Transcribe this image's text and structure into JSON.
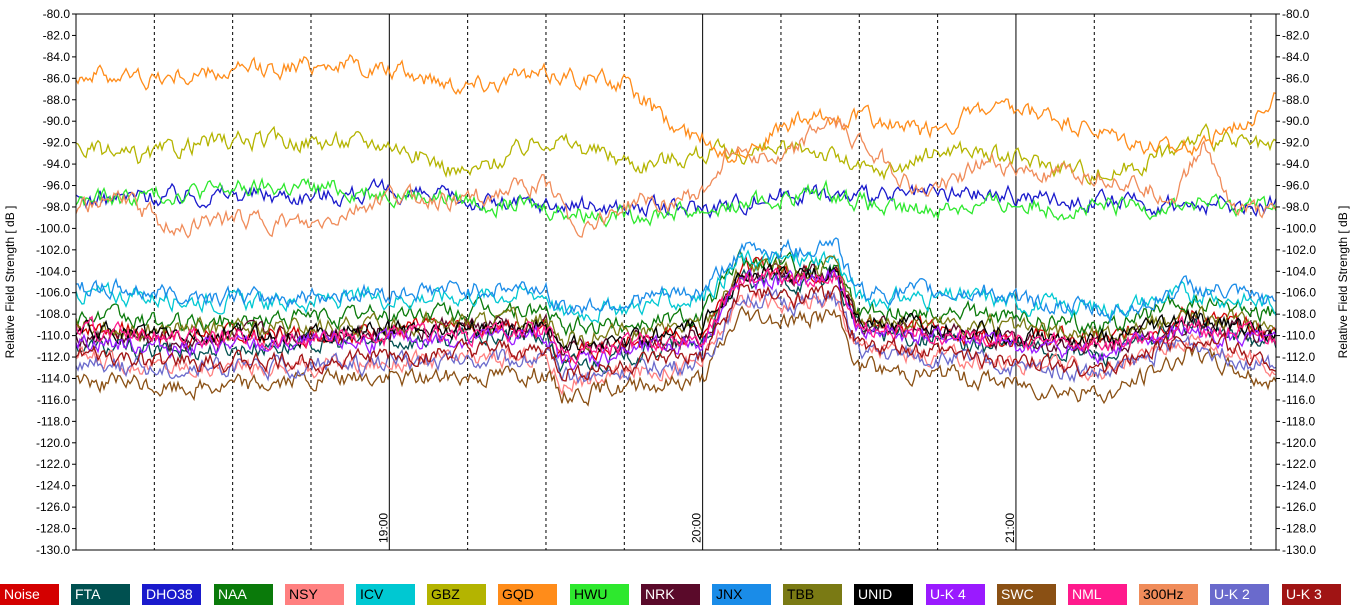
{
  "chart_data": {
    "type": "line",
    "title": "",
    "ylabel_left": "Relative Field Strength [ dB ]",
    "ylabel_right": "Relative Field Strength [ dB ]",
    "ylim": [
      -130,
      -80
    ],
    "yticks": [
      "-80.0",
      "-82.0",
      "-84.0",
      "-86.0",
      "-88.0",
      "-90.0",
      "-92.0",
      "-94.0",
      "-96.0",
      "-98.0",
      "-100.0",
      "-102.0",
      "-104.0",
      "-106.0",
      "-108.0",
      "-110.0",
      "-112.0",
      "-114.0",
      "-116.0",
      "-118.0",
      "-120.0",
      "-122.0",
      "-124.0",
      "-126.0",
      "-128.0",
      "-130.0"
    ],
    "xlim_minutes": [
      18.0,
      21.83
    ],
    "x_labels": [
      {
        "time": "19:00",
        "hour": 19.0
      },
      {
        "time": "20:00",
        "hour": 20.0
      },
      {
        "time": "21:00",
        "hour": 21.0
      }
    ],
    "grid": {
      "solid_hours": [
        19.0,
        20.0,
        21.0
      ],
      "dashed_hours": [
        18.25,
        18.5,
        18.75,
        19.25,
        19.5,
        19.75,
        20.25,
        20.5,
        20.75,
        21.25,
        21.75
      ]
    },
    "series": [
      {
        "name": "Noise",
        "color": "#d40000",
        "text_color": "#ffffff",
        "x": [
          18.0,
          18.3,
          18.6,
          19.0,
          19.5,
          19.55,
          20.0,
          20.12,
          20.3,
          20.42,
          20.5,
          20.9,
          21.0,
          21.3,
          21.55,
          21.83
        ],
        "y": [
          -109,
          -110,
          -110,
          -109.5,
          -109,
          -112,
          -109.5,
          -103.5,
          -104,
          -104,
          -108.5,
          -110,
          -110,
          -110.5,
          -108,
          -110
        ]
      },
      {
        "name": "FTA",
        "color": "#005050",
        "text_color": "#ffffff",
        "x": [
          18.0,
          18.3,
          18.6,
          19.0,
          19.5,
          19.55,
          20.0,
          20.12,
          20.3,
          20.42,
          20.5,
          20.9,
          21.0,
          21.3,
          21.55,
          21.83
        ],
        "y": [
          -111,
          -111.5,
          -111,
          -110.5,
          -110,
          -113,
          -110.5,
          -105,
          -105,
          -104.5,
          -109.5,
          -111,
          -111,
          -112,
          -109,
          -111
        ]
      },
      {
        "name": "DHO38",
        "color": "#1a1acc",
        "text_color": "#ffffff",
        "x": [
          18.0,
          18.2,
          18.5,
          18.8,
          19.0,
          19.3,
          19.6,
          19.9,
          20.1,
          20.3,
          20.5,
          20.8,
          21.0,
          21.3,
          21.6,
          21.83
        ],
        "y": [
          -97.5,
          -97,
          -96.8,
          -96.9,
          -96.6,
          -97.6,
          -97.9,
          -98.2,
          -97.7,
          -96.5,
          -97.2,
          -96.8,
          -96.9,
          -97.6,
          -98.0,
          -97.8
        ]
      },
      {
        "name": "NAA",
        "color": "#0a7a0a",
        "text_color": "#ffffff",
        "x": [
          18.0,
          18.3,
          18.6,
          19.0,
          19.5,
          19.55,
          20.0,
          20.12,
          20.3,
          20.42,
          20.5,
          20.9,
          21.0,
          21.3,
          21.55,
          21.83
        ],
        "y": [
          -108,
          -109,
          -108.5,
          -108,
          -107.5,
          -109.5,
          -108,
          -103,
          -103.5,
          -103,
          -107.5,
          -108,
          -108.5,
          -109,
          -107,
          -108
        ]
      },
      {
        "name": "NSY",
        "color": "#ff8080",
        "text_color": "#000000",
        "x": [
          18.0,
          18.3,
          18.6,
          19.0,
          19.5,
          19.55,
          20.0,
          20.12,
          20.3,
          20.42,
          20.5,
          20.9,
          21.0,
          21.3,
          21.55,
          21.83
        ],
        "y": [
          -112,
          -113,
          -113,
          -112.5,
          -112,
          -114.5,
          -112.5,
          -106.5,
          -107,
          -106.5,
          -111,
          -112.5,
          -112.5,
          -113.5,
          -110,
          -113
        ]
      },
      {
        "name": "ICV",
        "color": "#00c8d2",
        "text_color": "#000000",
        "x": [
          18.0,
          18.3,
          18.6,
          19.0,
          19.5,
          19.55,
          20.0,
          20.12,
          20.3,
          20.42,
          20.5,
          20.9,
          21.0,
          21.3,
          21.55,
          21.83
        ],
        "y": [
          -106,
          -106.5,
          -107,
          -106.5,
          -106,
          -108,
          -106.5,
          -103,
          -103,
          -102.5,
          -106.5,
          -106.5,
          -107,
          -107.5,
          -106,
          -107
        ]
      },
      {
        "name": "GBZ",
        "color": "#b4b400",
        "text_color": "#000000",
        "x": [
          18.0,
          18.2,
          18.4,
          18.7,
          19.0,
          19.25,
          19.5,
          19.8,
          20.0,
          20.15,
          20.35,
          20.55,
          20.8,
          21.0,
          21.3,
          21.6,
          21.83
        ],
        "y": [
          -92.5,
          -93.5,
          -92,
          -91.8,
          -92,
          -95,
          -91.5,
          -94,
          -93,
          -93,
          -92.5,
          -95,
          -92.5,
          -93.5,
          -95,
          -91.5,
          -92.8
        ]
      },
      {
        "name": "GQD",
        "color": "#ff8c1a",
        "text_color": "#000000",
        "x": [
          18.0,
          18.25,
          18.5,
          18.8,
          19.0,
          19.25,
          19.55,
          19.75,
          19.9,
          20.1,
          20.3,
          20.5,
          20.7,
          20.9,
          21.1,
          21.3,
          21.5,
          21.7,
          21.83
        ],
        "y": [
          -85.5,
          -86,
          -85.5,
          -84.5,
          -85.3,
          -86.5,
          -85.5,
          -86.5,
          -90.5,
          -93,
          -90,
          -89.5,
          -91,
          -89,
          -89.5,
          -91.5,
          -93,
          -90.5,
          -87.5
        ]
      },
      {
        "name": "HWU",
        "color": "#2ee82e",
        "text_color": "#000000",
        "x": [
          18.0,
          18.2,
          18.4,
          18.7,
          19.0,
          19.2,
          19.4,
          19.6,
          19.8,
          20.0,
          20.2,
          20.4,
          20.6,
          20.8,
          21.0,
          21.2,
          21.4,
          21.6,
          21.83
        ],
        "y": [
          -97.5,
          -97,
          -96.5,
          -96.2,
          -96.6,
          -97.2,
          -97.8,
          -98.5,
          -98.6,
          -98.3,
          -97.5,
          -96.5,
          -98.5,
          -98,
          -97.7,
          -98.3,
          -98.0,
          -97.8,
          -97.9
        ]
      },
      {
        "name": "NRK",
        "color": "#5a0a2a",
        "text_color": "#ffffff",
        "x": [
          18.0,
          18.3,
          18.6,
          19.0,
          19.5,
          19.55,
          20.0,
          20.12,
          20.3,
          20.42,
          20.5,
          20.9,
          21.0,
          21.3,
          21.55,
          21.83
        ],
        "y": [
          -110,
          -110.5,
          -110,
          -109.5,
          -109,
          -111.5,
          -110,
          -104.5,
          -104.5,
          -104,
          -109,
          -110,
          -110.5,
          -111,
          -109,
          -110
        ]
      },
      {
        "name": "JNX",
        "color": "#1a8ce8",
        "text_color": "#000000",
        "x": [
          18.0,
          18.3,
          18.6,
          19.0,
          19.5,
          19.55,
          20.0,
          20.12,
          20.3,
          20.42,
          20.5,
          20.9,
          21.0,
          21.3,
          21.55,
          21.83
        ],
        "y": [
          -105.5,
          -106,
          -106.5,
          -106,
          -105.5,
          -107.5,
          -106,
          -102,
          -102,
          -101,
          -106,
          -106,
          -106.5,
          -108,
          -105.5,
          -107
        ]
      },
      {
        "name": "TBB",
        "color": "#7a7a14",
        "text_color": "#000000",
        "x": [
          18.0,
          18.3,
          18.6,
          19.0,
          19.5,
          19.55,
          20.0,
          20.12,
          20.3,
          20.42,
          20.5,
          20.9,
          21.0,
          21.3,
          21.55,
          21.83
        ],
        "y": [
          -109,
          -109.5,
          -109.5,
          -109,
          -108.5,
          -110.5,
          -109,
          -104,
          -104,
          -103.5,
          -108.5,
          -109,
          -109.5,
          -110,
          -108,
          -109
        ]
      },
      {
        "name": "UNID",
        "color": "#000000",
        "text_color": "#ffffff",
        "x": [
          18.0,
          18.3,
          18.6,
          19.0,
          19.5,
          19.55,
          20.0,
          20.12,
          20.3,
          20.42,
          20.5,
          20.9,
          21.0,
          21.3,
          21.55,
          21.83
        ],
        "y": [
          -109.5,
          -110,
          -110,
          -109.5,
          -109,
          -111,
          -109.5,
          -104,
          -104.5,
          -104,
          -109,
          -109.5,
          -110,
          -110.5,
          -108.5,
          -109.5
        ]
      },
      {
        "name": "U-K 4",
        "color": "#9a1aff",
        "text_color": "#ffffff",
        "x": [
          18.0,
          18.3,
          18.6,
          19.0,
          19.5,
          19.55,
          20.0,
          20.12,
          20.3,
          20.42,
          20.5,
          20.9,
          21.0,
          21.3,
          21.55,
          21.83
        ],
        "y": [
          -110.5,
          -111,
          -111,
          -110.5,
          -110,
          -112.5,
          -110.5,
          -105,
          -105,
          -104.5,
          -109.5,
          -110.5,
          -111,
          -111.5,
          -109.5,
          -111
        ]
      },
      {
        "name": "SWC",
        "color": "#8a5014",
        "text_color": "#ffffff",
        "x": [
          18.0,
          18.3,
          18.6,
          19.0,
          19.5,
          19.55,
          20.0,
          20.12,
          20.3,
          20.42,
          20.5,
          20.9,
          21.0,
          21.3,
          21.55,
          21.83
        ],
        "y": [
          -114,
          -115,
          -114.5,
          -114,
          -113.5,
          -115.5,
          -114,
          -108,
          -108.5,
          -108,
          -113,
          -114,
          -114.5,
          -115.5,
          -111.5,
          -114.5
        ]
      },
      {
        "name": "NML",
        "color": "#ff1a8c",
        "text_color": "#ffffff",
        "x": [
          18.0,
          18.3,
          18.6,
          19.0,
          19.5,
          19.55,
          20.0,
          20.12,
          20.3,
          20.42,
          20.5,
          20.9,
          21.0,
          21.3,
          21.55,
          21.83
        ],
        "y": [
          -109.5,
          -110,
          -110.5,
          -110,
          -109.5,
          -111.5,
          -110,
          -104.5,
          -105,
          -104,
          -109.5,
          -110,
          -110.5,
          -111,
          -109,
          -110.5
        ]
      },
      {
        "name": "300Hz",
        "color": "#f08c5a",
        "text_color": "#000000",
        "x": [
          18.0,
          18.15,
          18.3,
          18.5,
          18.75,
          19.0,
          19.2,
          19.5,
          19.6,
          19.8,
          20.0,
          20.1,
          20.25,
          20.4,
          20.55,
          20.7,
          20.9,
          21.1,
          21.3,
          21.5,
          21.6,
          21.7,
          21.83
        ],
        "y": [
          -98,
          -97,
          -100,
          -99,
          -100,
          -97,
          -97.5,
          -96,
          -100,
          -97.5,
          -97,
          -92,
          -94,
          -90,
          -93,
          -97,
          -94,
          -95,
          -95,
          -97,
          -92,
          -98,
          -99
        ]
      },
      {
        "name": "U-K 2",
        "color": "#6a6acc",
        "text_color": "#ffffff",
        "x": [
          18.0,
          18.3,
          18.6,
          19.0,
          19.5,
          19.55,
          20.0,
          20.12,
          20.3,
          20.42,
          20.5,
          20.9,
          21.0,
          21.3,
          21.55,
          21.83
        ],
        "y": [
          -112.5,
          -113,
          -113,
          -112.5,
          -112,
          -114,
          -112.5,
          -106.5,
          -107,
          -106.5,
          -111.5,
          -112.5,
          -113,
          -113.5,
          -110.5,
          -113
        ]
      },
      {
        "name": "U-K 3",
        "color": "#a01414",
        "text_color": "#ffffff",
        "x": [
          18.0,
          18.3,
          18.6,
          19.0,
          19.5,
          19.55,
          20.0,
          20.12,
          20.3,
          20.42,
          20.5,
          20.9,
          21.0,
          21.3,
          21.55,
          21.83
        ],
        "y": [
          -112,
          -112.5,
          -112.5,
          -112,
          -111.5,
          -113.5,
          -112,
          -106,
          -106.5,
          -106,
          -111,
          -112,
          -112.5,
          -113,
          -110,
          -112.5
        ]
      }
    ]
  }
}
